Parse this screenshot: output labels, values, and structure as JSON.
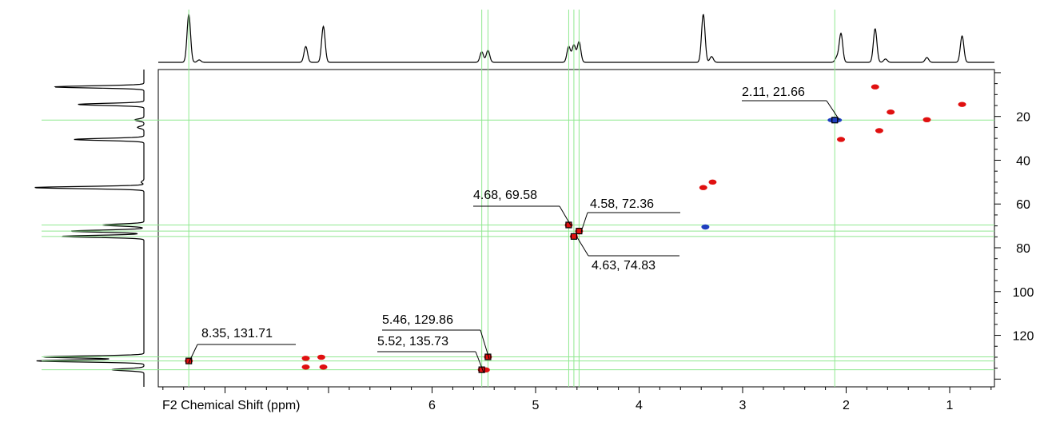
{
  "chart_data": {
    "type": "scatter",
    "title": "",
    "xlabel": "F2 Chemical Shift (ppm)",
    "ylabel": "",
    "x_reversed": true,
    "xlim": [
      8.6,
      0.6
    ],
    "ylim": [
      0,
      140
    ],
    "y_reversed": true,
    "x_ticks": [
      "6",
      "5",
      "4",
      "3",
      "2",
      "1"
    ],
    "y_ticks": [
      "20",
      "40",
      "60",
      "80",
      "100",
      "120"
    ],
    "labeled_peaks": [
      {
        "x": 2.11,
        "y": 21.66,
        "label": "2.11, 21.66",
        "color": "#1f3fbf"
      },
      {
        "x": 4.68,
        "y": 69.58,
        "label": "4.68, 69.58",
        "color": "#e01010"
      },
      {
        "x": 4.58,
        "y": 72.36,
        "label": "4.58, 72.36",
        "color": "#e01010"
      },
      {
        "x": 4.63,
        "y": 74.83,
        "label": "4.63, 74.83",
        "color": "#e01010"
      },
      {
        "x": 8.35,
        "y": 131.71,
        "label": "8.35, 131.71",
        "color": "#e01010"
      },
      {
        "x": 5.46,
        "y": 129.86,
        "label": "5.46, 129.86",
        "color": "#e01010"
      },
      {
        "x": 5.52,
        "y": 135.73,
        "label": "5.52, 135.73",
        "color": "#e01010"
      }
    ],
    "other_peaks": [
      {
        "x": 1.72,
        "y": 6.5,
        "color": "#e01010"
      },
      {
        "x": 0.88,
        "y": 14.5,
        "color": "#e01010"
      },
      {
        "x": 2.05,
        "y": 30.5,
        "color": "#e01010"
      },
      {
        "x": 1.68,
        "y": 26.5,
        "color": "#e01010"
      },
      {
        "x": 1.22,
        "y": 21.5,
        "color": "#e01010"
      },
      {
        "x": 1.57,
        "y": 18.0,
        "color": "#e01010"
      },
      {
        "x": 3.38,
        "y": 52.5,
        "color": "#e01010"
      },
      {
        "x": 3.29,
        "y": 50.0,
        "color": "#e01010"
      },
      {
        "x": 3.36,
        "y": 70.5,
        "color": "#1f3fbf"
      },
      {
        "x": 7.22,
        "y": 130.5,
        "color": "#e01010"
      },
      {
        "x": 7.07,
        "y": 130.0,
        "color": "#e01010"
      },
      {
        "x": 7.22,
        "y": 134.5,
        "color": "#e01010"
      },
      {
        "x": 7.05,
        "y": 134.5,
        "color": "#e01010"
      },
      {
        "x": 5.48,
        "y": 135.8,
        "color": "#e01010"
      }
    ],
    "f2_projection_peaks": [
      {
        "x": 8.35,
        "h": 1.0
      },
      {
        "x": 8.25,
        "h": 0.05
      },
      {
        "x": 7.22,
        "h": 0.33
      },
      {
        "x": 7.05,
        "h": 0.75
      },
      {
        "x": 5.52,
        "h": 0.22
      },
      {
        "x": 5.46,
        "h": 0.25
      },
      {
        "x": 4.68,
        "h": 0.33
      },
      {
        "x": 4.63,
        "h": 0.36
      },
      {
        "x": 4.58,
        "h": 0.43
      },
      {
        "x": 3.38,
        "h": 1.0
      },
      {
        "x": 3.3,
        "h": 0.12
      },
      {
        "x": 2.05,
        "h": 0.6
      },
      {
        "x": 2.09,
        "h": 0.1
      },
      {
        "x": 1.72,
        "h": 0.7
      },
      {
        "x": 1.62,
        "h": 0.07
      },
      {
        "x": 1.22,
        "h": 0.1
      },
      {
        "x": 0.88,
        "h": 0.55
      }
    ],
    "f1_projection_peaks": [
      {
        "y": 6.5,
        "h": 0.98
      },
      {
        "y": 14.5,
        "h": 0.72
      },
      {
        "y": 21.6,
        "h": 0.1
      },
      {
        "y": 25.0,
        "h": 0.07
      },
      {
        "y": 30.5,
        "h": 0.76
      },
      {
        "y": 50.0,
        "h": 0.03
      },
      {
        "y": 52.5,
        "h": 1.2
      },
      {
        "y": 69.6,
        "h": 0.45
      },
      {
        "y": 72.4,
        "h": 0.8
      },
      {
        "y": 74.8,
        "h": 0.9
      },
      {
        "y": 129.9,
        "h": 1.1
      },
      {
        "y": 131.7,
        "h": 1.17
      },
      {
        "y": 135.7,
        "h": 0.35
      }
    ],
    "crosshair_color": "#90e890",
    "grid": false
  }
}
